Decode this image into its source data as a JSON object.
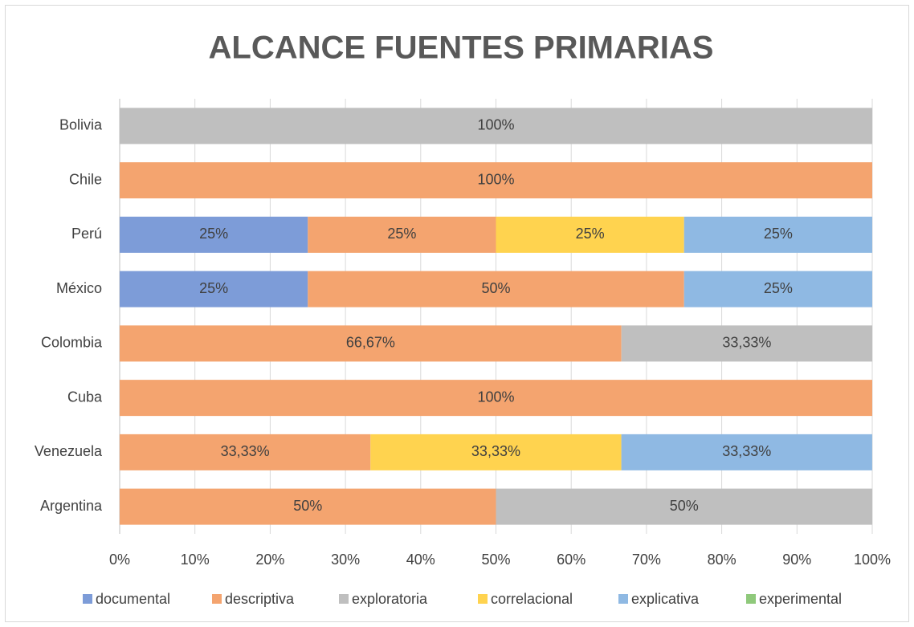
{
  "chart_data": {
    "type": "bar",
    "orientation": "horizontal",
    "stacked": true,
    "title": "ALCANCE FUENTES PRIMARIAS",
    "categories": [
      "Bolivia",
      "Chile",
      "Perú",
      "México",
      "Colombia",
      "Cuba",
      "Venezuela",
      "Argentina"
    ],
    "series": [
      {
        "name": "documental",
        "color": "#7d9cd8",
        "values": [
          0,
          0,
          25,
          25,
          0,
          0,
          0,
          0
        ],
        "value_labels": [
          null,
          null,
          "25%",
          "25%",
          null,
          null,
          null,
          null
        ]
      },
      {
        "name": "descriptiva",
        "color": "#f4a46f",
        "values": [
          0,
          100,
          25,
          50,
          66.67,
          100,
          33.33,
          50
        ],
        "value_labels": [
          null,
          "100%",
          "25%",
          "50%",
          "66,67%",
          "100%",
          "33,33%",
          "50%"
        ]
      },
      {
        "name": "exploratoria",
        "color": "#bfbfbf",
        "values": [
          100,
          0,
          0,
          0,
          33.33,
          0,
          0,
          50
        ],
        "value_labels": [
          "100%",
          null,
          null,
          null,
          "33,33%",
          null,
          null,
          "50%"
        ]
      },
      {
        "name": "correlacional",
        "color": "#ffd34f",
        "values": [
          0,
          0,
          25,
          0,
          0,
          0,
          33.33,
          0
        ],
        "value_labels": [
          null,
          null,
          "25%",
          null,
          null,
          null,
          "33,33%",
          null
        ]
      },
      {
        "name": "explicativa",
        "color": "#8fb9e3",
        "values": [
          0,
          0,
          25,
          25,
          0,
          0,
          33.33,
          0
        ],
        "value_labels": [
          null,
          null,
          "25%",
          "25%",
          null,
          null,
          "33,33%",
          null
        ]
      },
      {
        "name": "experimental",
        "color": "#8fc97b",
        "values": [
          0,
          0,
          0,
          0,
          0,
          0,
          0,
          0
        ],
        "value_labels": [
          null,
          null,
          null,
          null,
          null,
          null,
          null,
          null
        ]
      }
    ],
    "xlim": [
      0,
      100
    ],
    "xticks": [
      {
        "value": 0,
        "label": "0%"
      },
      {
        "value": 10,
        "label": "10%"
      },
      {
        "value": 20,
        "label": "20%"
      },
      {
        "value": 30,
        "label": "30%"
      },
      {
        "value": 40,
        "label": "40%"
      },
      {
        "value": 50,
        "label": "50%"
      },
      {
        "value": 60,
        "label": "60%"
      },
      {
        "value": 70,
        "label": "70%"
      },
      {
        "value": 80,
        "label": "80%"
      },
      {
        "value": 90,
        "label": "90%"
      },
      {
        "value": 100,
        "label": "100%"
      }
    ],
    "grid": true,
    "legend": "bottom"
  }
}
